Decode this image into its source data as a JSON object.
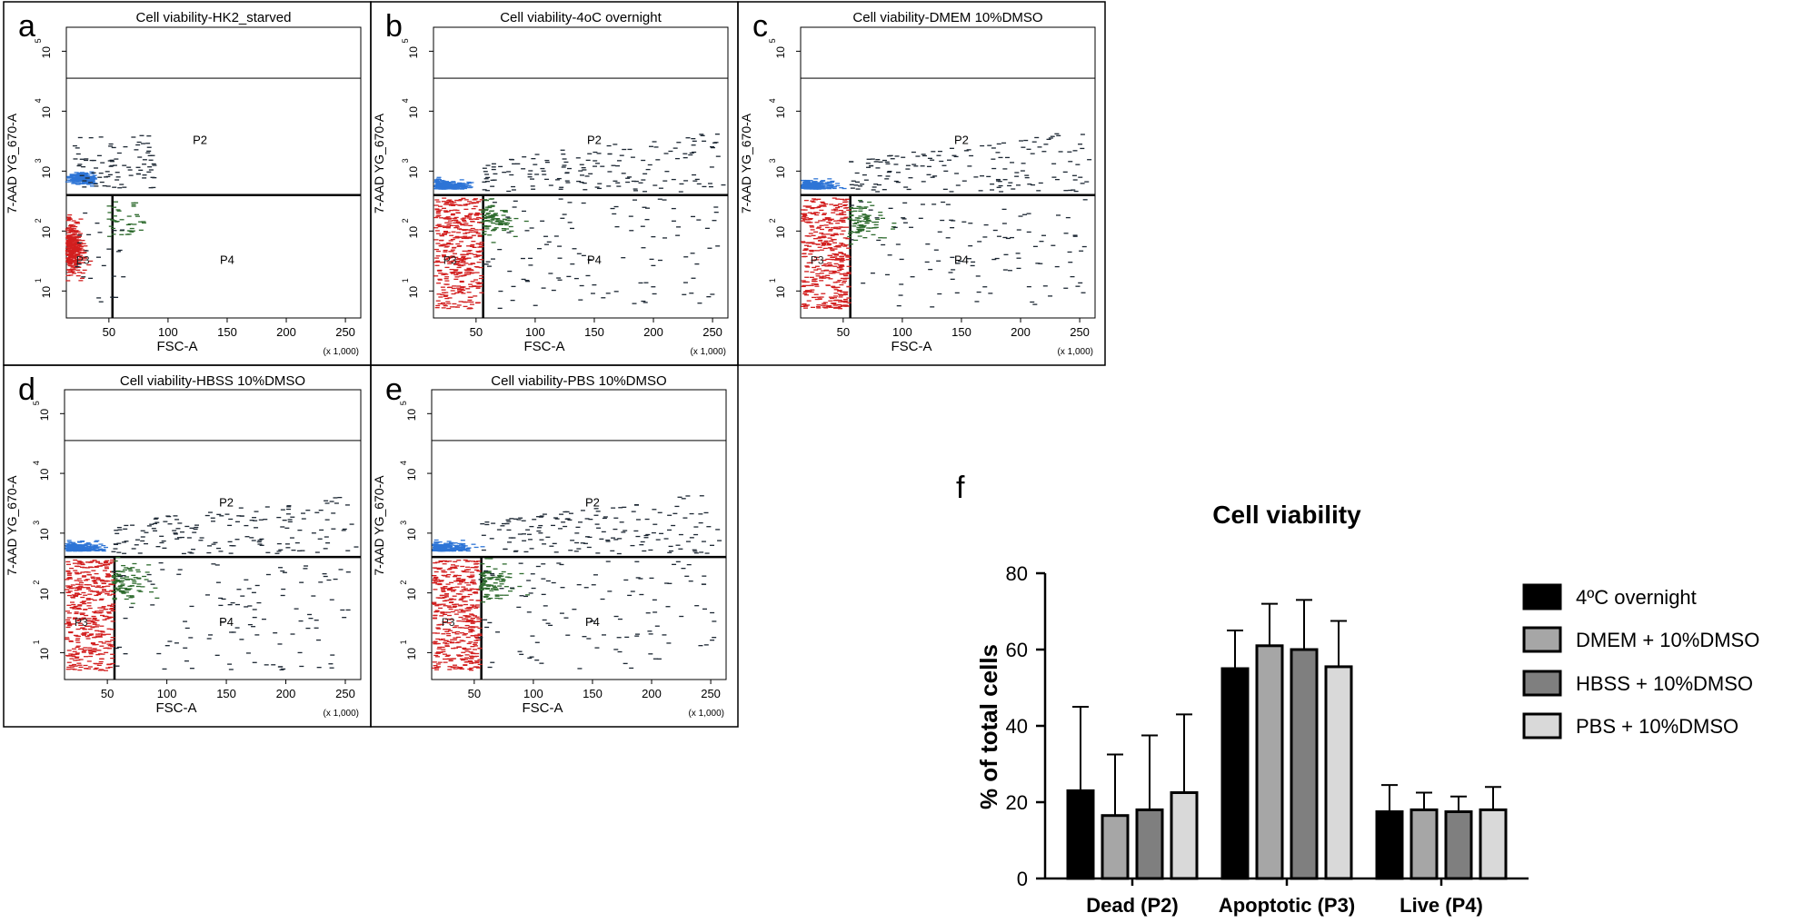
{
  "flow_panels": [
    {
      "letter": "a",
      "title": "Cell viability-HK2_starved",
      "xlabel": "FSC-A",
      "ylabel": "7-AAD YG_670-A",
      "xscale": "(x 1,000)",
      "xticks": [
        "50",
        "100",
        "150",
        "200",
        "250"
      ],
      "yticks": [
        "10",
        "10",
        "10",
        "10",
        "10"
      ],
      "yexp": [
        "1",
        "2",
        "3",
        "4",
        "5"
      ],
      "gates": [
        "P2",
        "P4",
        "P3"
      ],
      "profile": "starved"
    },
    {
      "letter": "b",
      "title": "Cell viability-4oC overnight",
      "xlabel": "FSC-A",
      "ylabel": "7-AAD YG_670-A",
      "xscale": "(x 1,000)",
      "xticks": [
        "50",
        "100",
        "150",
        "200",
        "250"
      ],
      "yticks": [
        "10",
        "10",
        "10",
        "10",
        "10"
      ],
      "yexp": [
        "1",
        "2",
        "3",
        "4",
        "5"
      ],
      "gates": [
        "P2",
        "P4",
        "P3"
      ],
      "profile": "spread"
    },
    {
      "letter": "c",
      "title": "Cell viability-DMEM 10%DMSO",
      "xlabel": "FSC-A",
      "ylabel": "7-AAD YG_670-A",
      "xscale": "(x 1,000)",
      "xticks": [
        "50",
        "100",
        "150",
        "200",
        "250"
      ],
      "yticks": [
        "10",
        "10",
        "10",
        "10",
        "10"
      ],
      "yexp": [
        "1",
        "2",
        "3",
        "4",
        "5"
      ],
      "gates": [
        "P2",
        "P4",
        "P3"
      ],
      "profile": "spread"
    },
    {
      "letter": "d",
      "title": "Cell viability-HBSS 10%DMSO",
      "xlabel": "FSC-A",
      "ylabel": "7-AAD YG_670-A",
      "xscale": "(x 1,000)",
      "xticks": [
        "50",
        "100",
        "150",
        "200",
        "250"
      ],
      "yticks": [
        "10",
        "10",
        "10",
        "10",
        "10"
      ],
      "yexp": [
        "1",
        "2",
        "3",
        "4",
        "5"
      ],
      "gates": [
        "P2",
        "P4",
        "P3"
      ],
      "profile": "spread"
    },
    {
      "letter": "e",
      "title": "Cell viability-PBS 10%DMSO",
      "xlabel": "FSC-A",
      "ylabel": "7-AAD YG_670-A",
      "xscale": "(x 1,000)",
      "xticks": [
        "50",
        "100",
        "150",
        "200",
        "250"
      ],
      "yticks": [
        "10",
        "10",
        "10",
        "10",
        "10"
      ],
      "yexp": [
        "1",
        "2",
        "3",
        "4",
        "5"
      ],
      "gates": [
        "P2",
        "P4",
        "P3"
      ],
      "profile": "spread"
    }
  ],
  "chart_data": {
    "type": "bar",
    "letter": "f",
    "title": "Cell viability",
    "xlabel": "",
    "ylabel": "% of total cells",
    "ylim": [
      0,
      80
    ],
    "yticks": [
      0,
      20,
      40,
      60,
      80
    ],
    "categories": [
      "Dead (P2)",
      "Apoptotic (P3)",
      "Live (P4)"
    ],
    "series": [
      {
        "name": "4ºC overnight",
        "color": "#000000",
        "values": [
          23,
          55,
          17.5
        ],
        "errors": [
          22,
          10,
          7
        ]
      },
      {
        "name": "DMEM + 10%DMSO",
        "color": "#a6a6a6",
        "values": [
          16.5,
          61,
          18
        ],
        "errors": [
          16,
          11,
          4.5
        ]
      },
      {
        "name": "HBSS + 10%DMSO",
        "color": "#7f7f7f",
        "values": [
          18,
          60,
          17.5
        ],
        "errors": [
          19.5,
          13,
          4
        ]
      },
      {
        "name": "PBS + 10%DMSO",
        "color": "#d9d9d9",
        "values": [
          22.5,
          55.5,
          18
        ],
        "errors": [
          20.5,
          12,
          6
        ]
      }
    ],
    "legend_position": "right"
  },
  "colors": {
    "dead": "#2e75d6",
    "apoptotic": "#d21f1f",
    "live": "#2e6b2e",
    "dash": "#1c2733"
  }
}
